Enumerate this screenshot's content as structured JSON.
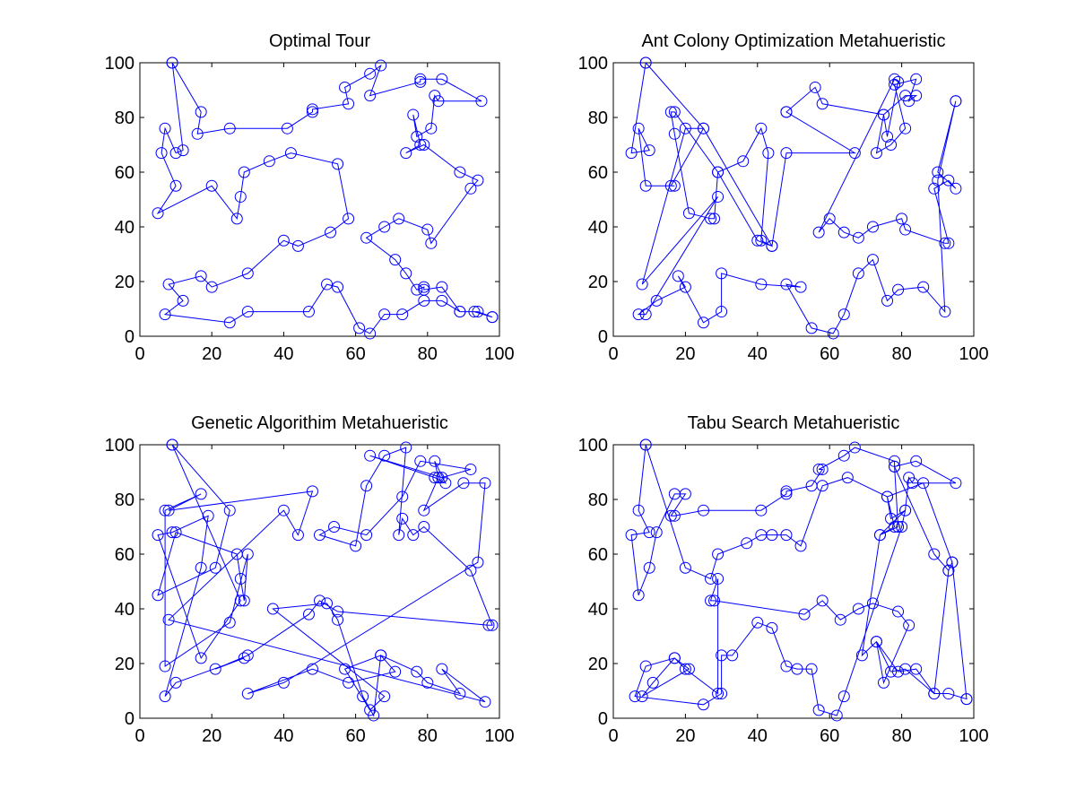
{
  "chart_data": [
    {
      "type": "line",
      "title": "Optimal Tour",
      "xlim": [
        0,
        100
      ],
      "ylim": [
        0,
        100
      ],
      "xticks": [
        "0",
        "20",
        "40",
        "60",
        "80",
        "100"
      ],
      "yticks": [
        "0",
        "20",
        "40",
        "60",
        "80",
        "100"
      ],
      "color": "#0000ff",
      "x": [
        9,
        17,
        16,
        25,
        41,
        48,
        48,
        58,
        57,
        64,
        67,
        64,
        78,
        78,
        84,
        95,
        83,
        82,
        81,
        77,
        76,
        78,
        74,
        79,
        89,
        94,
        92,
        81,
        80,
        72,
        68,
        63,
        71,
        74,
        77,
        79,
        79,
        84,
        89,
        94,
        98,
        98,
        93,
        89,
        84,
        79,
        73,
        68,
        64,
        61,
        55,
        52,
        47,
        30,
        25,
        7,
        12,
        8,
        17,
        20,
        30,
        40,
        44,
        53,
        58,
        55,
        42,
        36,
        29,
        28,
        27,
        20,
        5,
        10,
        6,
        7,
        10,
        12,
        9
      ],
      "y": [
        100,
        82,
        74,
        76,
        76,
        82,
        83,
        85,
        91,
        96,
        99,
        88,
        93,
        94,
        94,
        86,
        86,
        88,
        76,
        73,
        81,
        70,
        67,
        70,
        60,
        57,
        54,
        34,
        39,
        43,
        40,
        36,
        28,
        23,
        17,
        18,
        17,
        18,
        9,
        9,
        7,
        7,
        9,
        9,
        13,
        13,
        8,
        8,
        1,
        3,
        18,
        19,
        9,
        9,
        5,
        8,
        13,
        19,
        22,
        18,
        23,
        35,
        33,
        38,
        43,
        63,
        67,
        64,
        60,
        51,
        43,
        55,
        45,
        55,
        67,
        76,
        67,
        68,
        100
      ]
    },
    {
      "type": "line",
      "title": "Ant Colony Optimization Metahueristic",
      "xlim": [
        0,
        100
      ],
      "ylim": [
        0,
        100
      ],
      "xticks": [
        "0",
        "20",
        "40",
        "60",
        "80",
        "100"
      ],
      "yticks": [
        "0",
        "20",
        "40",
        "60",
        "80",
        "100"
      ],
      "color": "#0000ff",
      "x": [
        9,
        5,
        10,
        7,
        9,
        17,
        16,
        25,
        20,
        8,
        29,
        9,
        7,
        12,
        20,
        18,
        25,
        30,
        30,
        41,
        52,
        48,
        55,
        61,
        64,
        68,
        72,
        76,
        79,
        86,
        92,
        90,
        95,
        95,
        90,
        95,
        93,
        89,
        93,
        92,
        81,
        80,
        72,
        68,
        64,
        60,
        57,
        78,
        79,
        76,
        75,
        73,
        77,
        81,
        78,
        84,
        82,
        84,
        81,
        75,
        58,
        56,
        48,
        48,
        67,
        48,
        44,
        41,
        43,
        41,
        36,
        29,
        28,
        27,
        21,
        17,
        16,
        17,
        29,
        40,
        44,
        25,
        9
      ],
      "y": [
        100,
        67,
        68,
        76,
        55,
        55,
        55,
        76,
        76,
        19,
        51,
        8,
        8,
        13,
        18,
        22,
        5,
        9,
        23,
        19,
        18,
        19,
        3,
        1,
        8,
        23,
        28,
        13,
        17,
        18,
        9,
        57,
        86,
        86,
        60,
        54,
        57,
        54,
        34,
        34,
        39,
        43,
        40,
        36,
        38,
        43,
        38,
        94,
        93,
        73,
        81,
        67,
        70,
        76,
        92,
        94,
        86,
        88,
        88,
        81,
        85,
        91,
        82,
        82,
        67,
        67,
        33,
        35,
        67,
        76,
        64,
        60,
        43,
        43,
        45,
        74,
        82,
        82,
        60,
        35,
        33,
        76,
        100
      ]
    },
    {
      "type": "line",
      "title": "Genetic Algorithim Metahueristic",
      "xlim": [
        0,
        100
      ],
      "ylim": [
        0,
        100
      ],
      "xticks": [
        "0",
        "20",
        "40",
        "60",
        "80",
        "100"
      ],
      "yticks": [
        "0",
        "20",
        "40",
        "60",
        "80",
        "100"
      ],
      "color": "#0000ff",
      "x": [
        9,
        25,
        21,
        5,
        10,
        27,
        28,
        29,
        30,
        25,
        7,
        7,
        17,
        8,
        48,
        44,
        40,
        8,
        96,
        84,
        89,
        80,
        77,
        67,
        57,
        64,
        68,
        37,
        52,
        55,
        62,
        65,
        67,
        71,
        58,
        48,
        30,
        40,
        94,
        96,
        90,
        79,
        83,
        82,
        85,
        82,
        64,
        84,
        92,
        78,
        73,
        63,
        54,
        50,
        60,
        63,
        68,
        74,
        72,
        73,
        76,
        79,
        92,
        98,
        97,
        55,
        50,
        47,
        30,
        21,
        29,
        10,
        7,
        17,
        19,
        9,
        5,
        17,
        28,
        9
      ],
      "y": [
        100,
        76,
        55,
        45,
        68,
        60,
        51,
        43,
        60,
        35,
        19,
        76,
        82,
        76,
        83,
        67,
        76,
        36,
        6,
        18,
        9,
        13,
        17,
        23,
        18,
        3,
        8,
        40,
        42,
        36,
        8,
        1,
        23,
        17,
        13,
        18,
        9,
        13,
        57,
        86,
        86,
        76,
        88,
        94,
        86,
        88,
        96,
        88,
        91,
        94,
        81,
        67,
        70,
        67,
        63,
        85,
        96,
        99,
        67,
        73,
        67,
        70,
        54,
        34,
        34,
        39,
        43,
        38,
        23,
        18,
        22,
        13,
        8,
        55,
        74,
        68,
        67,
        22,
        43,
        100
      ]
    },
    {
      "type": "line",
      "title": "Tabu Search Metahueristic",
      "xlim": [
        0,
        100
      ],
      "ylim": [
        0,
        100
      ],
      "xticks": [
        "0",
        "20",
        "40",
        "60",
        "80",
        "100"
      ],
      "yticks": [
        "0",
        "20",
        "40",
        "60",
        "80",
        "100"
      ],
      "color": "#0000ff",
      "x": [
        9,
        7,
        10,
        5,
        7,
        10,
        12,
        17,
        20,
        16,
        17,
        25,
        41,
        48,
        48,
        55,
        58,
        57,
        64,
        67,
        78,
        78,
        84,
        95,
        83,
        82,
        81,
        77,
        76,
        78,
        74,
        81,
        80,
        64,
        62,
        57,
        55,
        51,
        48,
        44,
        40,
        33,
        30,
        30,
        25,
        6,
        9,
        17,
        21,
        8,
        11,
        17,
        20,
        29,
        29,
        27,
        28,
        53,
        58,
        63,
        68,
        72,
        79,
        82,
        75,
        73,
        77,
        81,
        89,
        93,
        94,
        98,
        98,
        93,
        89,
        84,
        79,
        73,
        69,
        74,
        79,
        78,
        89,
        93,
        94,
        86,
        76,
        65,
        58,
        52,
        48,
        44,
        41,
        37,
        29,
        27,
        20,
        9
      ],
      "y": [
        100,
        76,
        68,
        67,
        45,
        55,
        68,
        82,
        82,
        74,
        74,
        76,
        76,
        82,
        83,
        85,
        91,
        91,
        96,
        99,
        94,
        92,
        94,
        86,
        86,
        88,
        76,
        73,
        81,
        70,
        67,
        76,
        70,
        8,
        1,
        3,
        18,
        18,
        19,
        33,
        35,
        23,
        23,
        9,
        5,
        8,
        19,
        22,
        18,
        8,
        13,
        22,
        18,
        9,
        51,
        43,
        43,
        38,
        43,
        36,
        40,
        42,
        39,
        34,
        13,
        28,
        17,
        18,
        9,
        54,
        57,
        7,
        7,
        9,
        9,
        18,
        17,
        28,
        23,
        67,
        70,
        92,
        60,
        54,
        57,
        86,
        81,
        88,
        85,
        63,
        67,
        67,
        67,
        64,
        60,
        51,
        55,
        100
      ]
    }
  ]
}
